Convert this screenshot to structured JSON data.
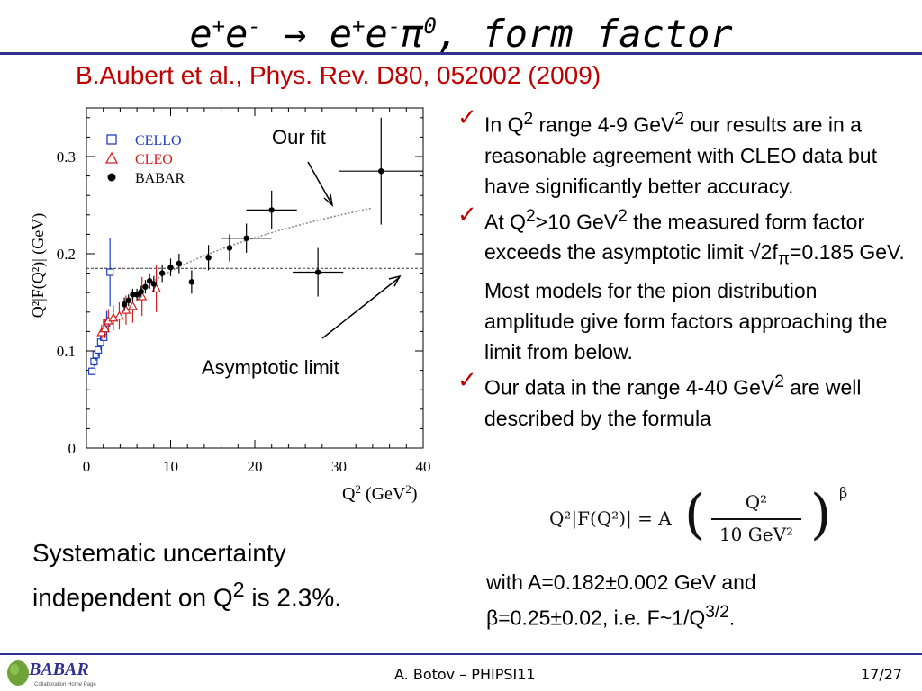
{
  "slide": {
    "title_e1": "e",
    "title_sup1": "+",
    "title_e2": "e",
    "title_sup2": "-",
    "title_arrow": "→",
    "title_e3": "e",
    "title_sup3": "+",
    "title_e4": "e",
    "title_sup4": "-",
    "title_pi": "π",
    "title_sup5": "0",
    "title_rest": ", form factor",
    "citation": "B.Aubert et al., Phys. Rev. D80, 052002 (2009)",
    "systematic_line1": "Systematic uncertainty",
    "systematic_line2a": "independent on Q",
    "systematic_line2sup": "2",
    "systematic_line2b": " is 2.3%.",
    "footer_text": "A. Botov – PHIPSI11",
    "page_number": "17/27",
    "logo_text": "BABAR",
    "logo_subtext": "Collaboration Home Page"
  },
  "bullets": [
    {
      "check": "✓",
      "parts": [
        "In Q",
        "2",
        " range  4-9 GeV",
        "2",
        " our results are in a reasonable agreement with CLEO data but have significantly better accuracy."
      ]
    },
    {
      "check": "✓",
      "parts": [
        "At Q",
        "2",
        ">10 GeV",
        "2",
        " the measured form factor  exceeds the asymptotic limit √2f",
        "π",
        "=0.185 GeV. Most models for the pion distribution amplitude give form factors  approaching the limit from below."
      ]
    },
    {
      "check": "✓",
      "parts": [
        "Our data in the range 4-40 GeV",
        "2",
        " are well described by the formula"
      ]
    }
  ],
  "formula": {
    "lhs": "Q²|F(Q²)| = A",
    "numerator": "Q²",
    "denominator": "10 GeV²",
    "exponent": "β"
  },
  "with_text": {
    "line1": "with A=0.182±0.002 GeV and",
    "line2a": "β=0.25±0.02, i.e. F~1/Q",
    "line2sup": "3/2",
    "line2b": "."
  },
  "chart_data": {
    "type": "scatter",
    "xlabel_main": "Q",
    "xlabel_sup": "2",
    "xlabel_unit": " (GeV",
    "xlabel_unit_sup": "2",
    "xlabel_close": ")",
    "ylabel": "Q²|F(Q²)| (GeV)",
    "xlim": [
      0,
      40
    ],
    "ylim": [
      0,
      0.35
    ],
    "xticks": [
      "0",
      "10",
      "20",
      "30",
      "40"
    ],
    "yticks": [
      "0",
      "0.1",
      "0.2",
      "0.3"
    ],
    "asymptotic_limit": 0.185,
    "annotations": {
      "fit": "Our fit",
      "limit": "Asymptotic limit"
    },
    "colors": {
      "cello": "#1f3fbf",
      "cleo": "#d02020",
      "babar": "#000000",
      "axis": "#000000"
    },
    "legend": [
      "CELLO",
      "CLEO",
      "BABAR"
    ],
    "series": [
      {
        "name": "CELLO",
        "marker": "square",
        "points": [
          [
            0.65,
            0.079,
            0.004
          ],
          [
            0.9,
            0.089,
            0.005
          ],
          [
            1.15,
            0.096,
            0.006
          ],
          [
            1.4,
            0.101,
            0.007
          ],
          [
            1.7,
            0.109,
            0.008
          ],
          [
            2.05,
            0.114,
            0.009
          ],
          [
            2.4,
            0.129,
            0.012
          ],
          [
            2.8,
            0.181,
            0.035
          ]
        ]
      },
      {
        "name": "CLEO",
        "marker": "triangle",
        "points": [
          [
            1.8,
            0.119,
            0.008
          ],
          [
            2.2,
            0.123,
            0.01
          ],
          [
            2.6,
            0.131,
            0.012
          ],
          [
            3.2,
            0.134,
            0.013
          ],
          [
            3.9,
            0.136,
            0.014
          ],
          [
            4.7,
            0.142,
            0.015
          ],
          [
            5.5,
            0.146,
            0.017
          ],
          [
            6.6,
            0.156,
            0.02
          ],
          [
            8.3,
            0.164,
            0.024
          ]
        ]
      },
      {
        "name": "BABAR",
        "marker": "circle",
        "points": [
          [
            4.5,
            0.148,
            0.007
          ],
          [
            5.0,
            0.152,
            0.006
          ],
          [
            5.5,
            0.158,
            0.006
          ],
          [
            6.0,
            0.158,
            0.006
          ],
          [
            6.5,
            0.161,
            0.006
          ],
          [
            7.0,
            0.166,
            0.007
          ],
          [
            7.5,
            0.172,
            0.008
          ],
          [
            8.0,
            0.169,
            0.008
          ],
          [
            9.0,
            0.18,
            0.009
          ],
          [
            10.0,
            0.186,
            0.009
          ],
          [
            11.0,
            0.19,
            0.01
          ],
          [
            12.5,
            0.171,
            0.012
          ],
          [
            14.5,
            0.196,
            0.013
          ],
          [
            17.0,
            0.206,
            0.014
          ],
          [
            19.0,
            0.216,
            0.015
          ],
          [
            22.0,
            0.245,
            0.02
          ],
          [
            27.5,
            0.181,
            0.025
          ],
          [
            35.0,
            0.285,
            0.055
          ]
        ]
      }
    ],
    "fit": {
      "A": 0.182,
      "beta": 0.25,
      "xrange": [
        6,
        34
      ]
    }
  }
}
